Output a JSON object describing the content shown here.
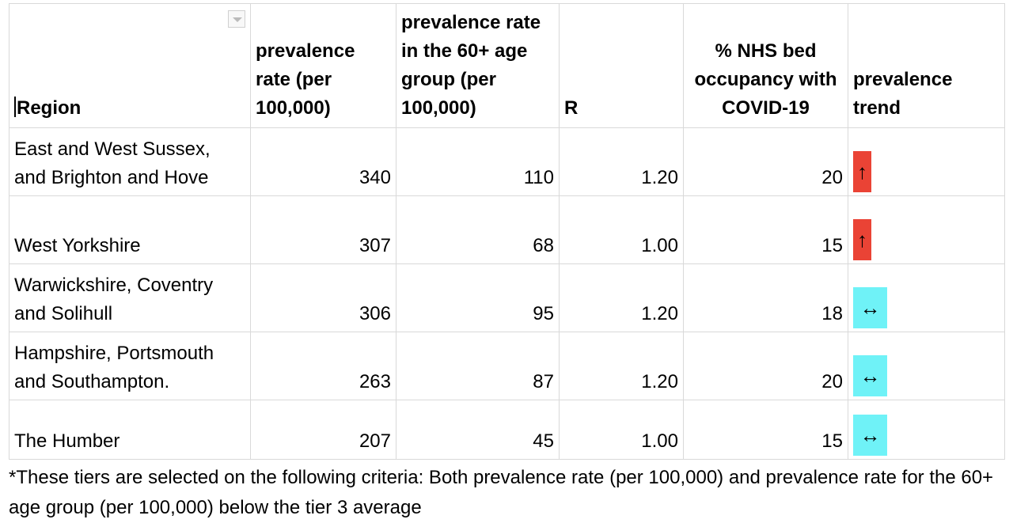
{
  "table": {
    "headers": {
      "region": "Region",
      "prevalence": "prevalence rate (per 100,000)",
      "prevalence60": "prevalence rate in the 60+ age group (per 100,000)",
      "r": "R",
      "nhs": "% NHS  bed occupancy with COVID-19",
      "trend": "prevalence trend"
    },
    "rows": [
      {
        "region": "East and West Sussex, and Brighton and Hove",
        "prevalence": "340",
        "prevalence60": "110",
        "r": "1.20",
        "nhs": "20",
        "trend": "↑",
        "trend_color": "#ea4335"
      },
      {
        "region": "West Yorkshire",
        "prevalence": "307",
        "prevalence60": "68",
        "r": "1.00",
        "nhs": "15",
        "trend": "↑",
        "trend_color": "#ea4335"
      },
      {
        "region": "Warwickshire, Coventry and Solihull",
        "prevalence": "306",
        "prevalence60": "95",
        "r": "1.20",
        "nhs": "18",
        "trend": "↔",
        "trend_color": "#6ff2f7"
      },
      {
        "region": "Hampshire, Portsmouth and Southampton.",
        "prevalence": "263",
        "prevalence60": "87",
        "r": "1.20",
        "nhs": "20",
        "trend": "↔",
        "trend_color": "#6ff2f7"
      },
      {
        "region": "The Humber",
        "prevalence": "207",
        "prevalence60": "45",
        "r": "1.00",
        "nhs": "15",
        "trend": "↔",
        "trend_color": "#6ff2f7"
      }
    ]
  },
  "footnote": "*These tiers are selected on the following criteria: Both prevalence rate (per 100,000) and prevalence rate for the 60+ age group (per 100,000) below the tier 3 average"
}
